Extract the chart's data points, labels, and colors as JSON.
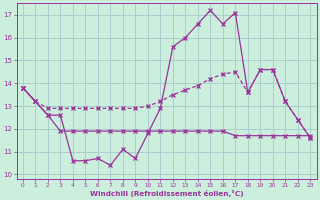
{
  "background_color": "#cceedd",
  "grid_color": "#aacccc",
  "line_color": "#993399",
  "xlabel": "Windchill (Refroidissement éolien,°C)",
  "xlim": [
    -0.5,
    23.5
  ],
  "ylim": [
    9.8,
    17.5
  ],
  "yticks": [
    10,
    11,
    12,
    13,
    14,
    15,
    16,
    17
  ],
  "xticks": [
    0,
    1,
    2,
    3,
    4,
    5,
    6,
    7,
    8,
    9,
    10,
    11,
    12,
    13,
    14,
    15,
    16,
    17,
    18,
    19,
    20,
    21,
    22,
    23
  ],
  "series1_x": [
    0,
    1,
    2,
    3,
    4,
    5,
    6,
    7,
    8,
    9,
    10,
    11,
    12,
    13,
    14,
    15,
    16,
    17,
    18,
    19,
    20,
    21,
    22,
    23
  ],
  "series1_y": [
    13.8,
    13.2,
    12.6,
    12.6,
    10.6,
    10.6,
    10.7,
    10.4,
    11.1,
    10.7,
    11.8,
    12.9,
    15.6,
    16.0,
    16.6,
    17.2,
    16.6,
    17.1,
    13.6,
    14.6,
    14.6,
    13.2,
    12.4,
    11.6
  ],
  "series2_x": [
    0,
    1,
    2,
    3,
    4,
    5,
    6,
    7,
    8,
    9,
    10,
    11,
    12,
    13,
    14,
    15,
    16,
    17,
    18,
    19,
    20,
    21,
    22,
    23
  ],
  "series2_y": [
    13.8,
    13.2,
    12.9,
    12.9,
    12.9,
    12.9,
    12.9,
    12.9,
    12.9,
    12.9,
    13.0,
    13.2,
    13.5,
    13.7,
    13.9,
    14.2,
    14.4,
    14.5,
    13.6,
    14.6,
    14.6,
    13.2,
    12.4,
    11.6
  ],
  "series3_x": [
    0,
    1,
    2,
    3,
    4,
    5,
    6,
    7,
    8,
    9,
    10,
    11,
    12,
    13,
    14,
    15,
    16,
    17,
    18,
    19,
    20,
    21,
    22,
    23
  ],
  "series3_y": [
    13.8,
    13.2,
    12.6,
    11.9,
    11.9,
    11.9,
    11.9,
    11.9,
    11.9,
    11.9,
    11.9,
    11.9,
    11.9,
    11.9,
    11.9,
    11.9,
    11.9,
    11.7,
    11.7,
    11.7,
    11.7,
    11.7,
    11.7,
    11.7
  ]
}
